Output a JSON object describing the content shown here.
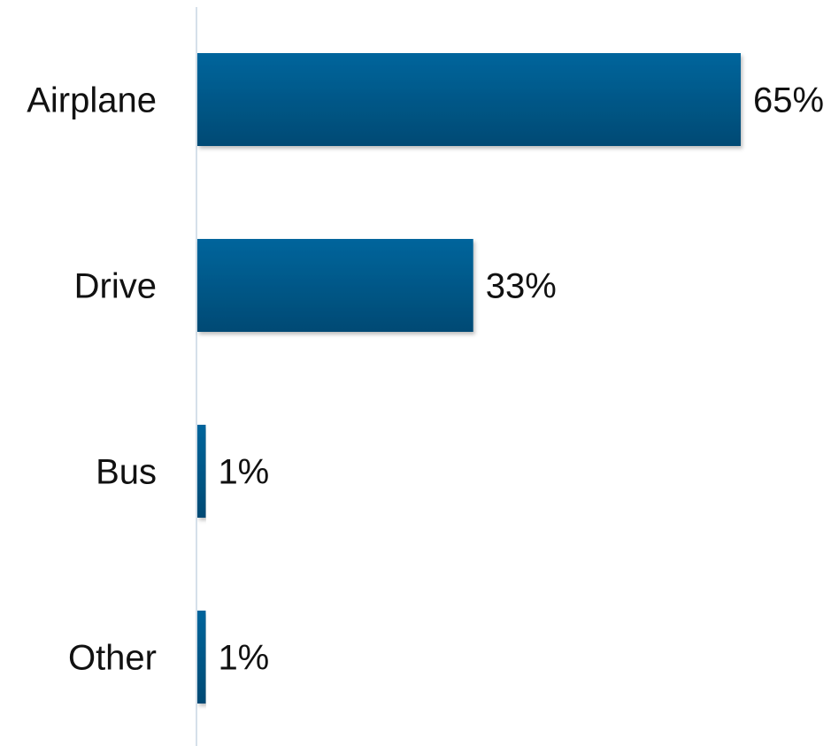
{
  "chart_data": {
    "type": "bar",
    "orientation": "horizontal",
    "categories": [
      "Airplane",
      "Drive",
      "Bus",
      "Other"
    ],
    "values": [
      65,
      33,
      1,
      1
    ],
    "value_labels": [
      "65%",
      "33%",
      "1%",
      "1%"
    ],
    "unit": "%",
    "title": "",
    "xlabel": "",
    "ylabel": "",
    "xlim": [
      0,
      65
    ],
    "grid": false,
    "legend": "none",
    "colors": {
      "bar_top": "#02659c",
      "bar_bottom": "#024a74",
      "axis": "#d5e0ea"
    }
  }
}
